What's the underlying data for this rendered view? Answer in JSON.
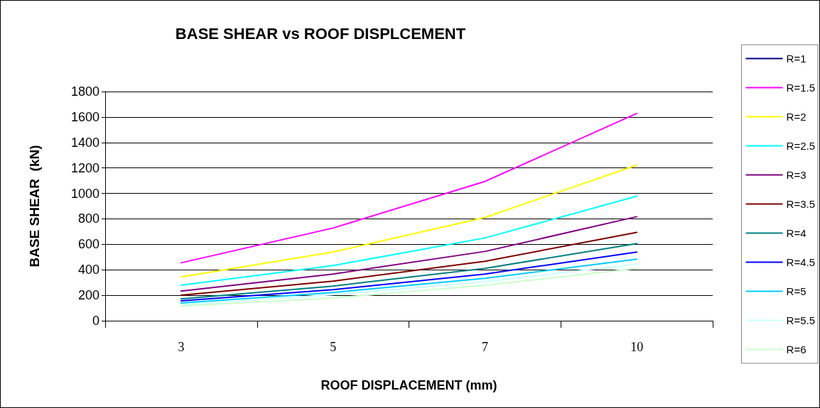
{
  "chart_data": {
    "type": "line",
    "title": "BASE SHEAR vs ROOF DISPLCEMENT",
    "xlabel": "ROOF DISPLACEMENT (mm)",
    "ylabel": "BASE SHEAR  (kN)",
    "categories": [
      "3",
      "5",
      "7",
      "10"
    ],
    "ylim": [
      0,
      1800
    ],
    "yticks": [
      0,
      200,
      400,
      600,
      800,
      1000,
      1200,
      1400,
      1600,
      1800
    ],
    "grid": "y",
    "legend": "right",
    "marker": "none",
    "line_style": "solid",
    "series": [
      {
        "name": "R=1",
        "color": "#000080",
        "values": [
          null,
          null,
          null,
          null
        ]
      },
      {
        "name": "R=1.5",
        "color": "#ff00ff",
        "values": [
          455,
          728,
          1094,
          1628
        ]
      },
      {
        "name": "R=2",
        "color": "#ffff00",
        "values": [
          344,
          539,
          811,
          1222
        ]
      },
      {
        "name": "R=2.5",
        "color": "#00ffff",
        "values": [
          278,
          433,
          650,
          978
        ]
      },
      {
        "name": "R=3",
        "color": "#800080",
        "values": [
          233,
          367,
          544,
          817
        ]
      },
      {
        "name": "R=3.5",
        "color": "#800000",
        "values": [
          200,
          311,
          467,
          694
        ]
      },
      {
        "name": "R=4",
        "color": "#008080",
        "values": [
          172,
          272,
          411,
          606
        ]
      },
      {
        "name": "R=4.5",
        "color": "#0000ff",
        "values": [
          156,
          244,
          367,
          539
        ]
      },
      {
        "name": "R=5",
        "color": "#00ccff",
        "values": [
          139,
          222,
          333,
          483
        ]
      },
      {
        "name": "R=5.5",
        "color": "#ccffff",
        "values": [
          125,
          205,
          306,
          444
        ]
      },
      {
        "name": "R=6",
        "color": "#ccffcc",
        "values": [
          115,
          178,
          278,
          411
        ]
      }
    ]
  }
}
